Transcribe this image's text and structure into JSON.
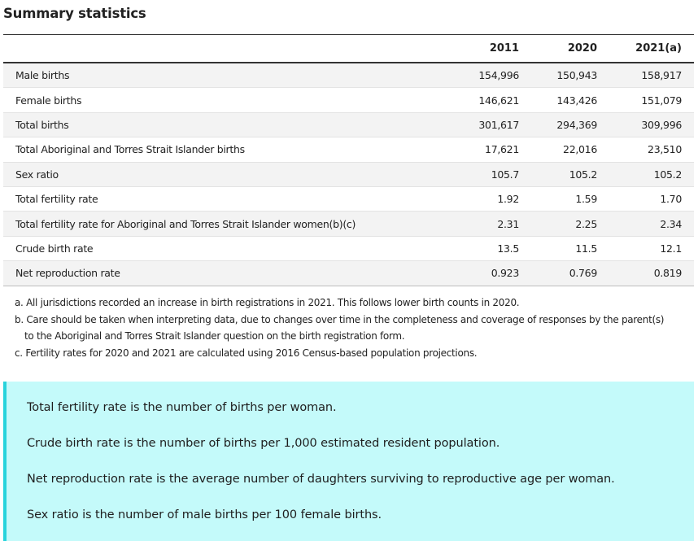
{
  "title": "Summary statistics",
  "table": {
    "headers": [
      "",
      "2011",
      "2020",
      "2021(a)"
    ],
    "rows": [
      {
        "label": "Male births",
        "values": [
          "154,996",
          "150,943",
          "158,917"
        ]
      },
      {
        "label": "Female births",
        "values": [
          "146,621",
          "143,426",
          "151,079"
        ]
      },
      {
        "label": "Total births",
        "values": [
          "301,617",
          "294,369",
          "309,996"
        ]
      },
      {
        "label": "Total Aboriginal and Torres Strait Islander births",
        "values": [
          "17,621",
          "22,016",
          "23,510"
        ]
      },
      {
        "label": "Sex ratio",
        "values": [
          "105.7",
          "105.2",
          "105.2"
        ]
      },
      {
        "label": "Total fertility rate",
        "values": [
          "1.92",
          "1.59",
          "1.70"
        ]
      },
      {
        "label": "Total fertility rate for Aboriginal and Torres Strait Islander women(b)(c)",
        "values": [
          "2.31",
          "2.25",
          "2.34"
        ]
      },
      {
        "label": "Crude birth rate",
        "values": [
          "13.5",
          "11.5",
          "12.1"
        ]
      },
      {
        "label": "Net reproduction rate",
        "values": [
          "0.923",
          "0.769",
          "0.819"
        ]
      }
    ]
  },
  "footnotes": {
    "a": "a. All jurisdictions recorded an increase in birth registrations in 2021. This follows lower birth counts in 2020.",
    "b_line1": "b. Care should be taken when interpreting data, due to changes over time in the completeness and coverage of responses by the parent(s)",
    "b_line2": "to the Aboriginal and Torres Strait Islander question on the birth registration form.",
    "c": "c. Fertility rates for 2020 and 2021 are calculated using 2016 Census-based population projections."
  },
  "definitions": [
    "Total fertility rate is the number of births per woman.",
    "Crude birth rate is the number of births per 1,000 estimated resident population.",
    "Net reproduction rate is the average number of daughters surviving to reproductive age per woman.",
    "Sex ratio is the number of male births per 100 female births."
  ],
  "colors": {
    "callout_bg": "#c4fafa",
    "callout_border": "#28d3dc",
    "row_stripe": "#f3f3f3"
  }
}
